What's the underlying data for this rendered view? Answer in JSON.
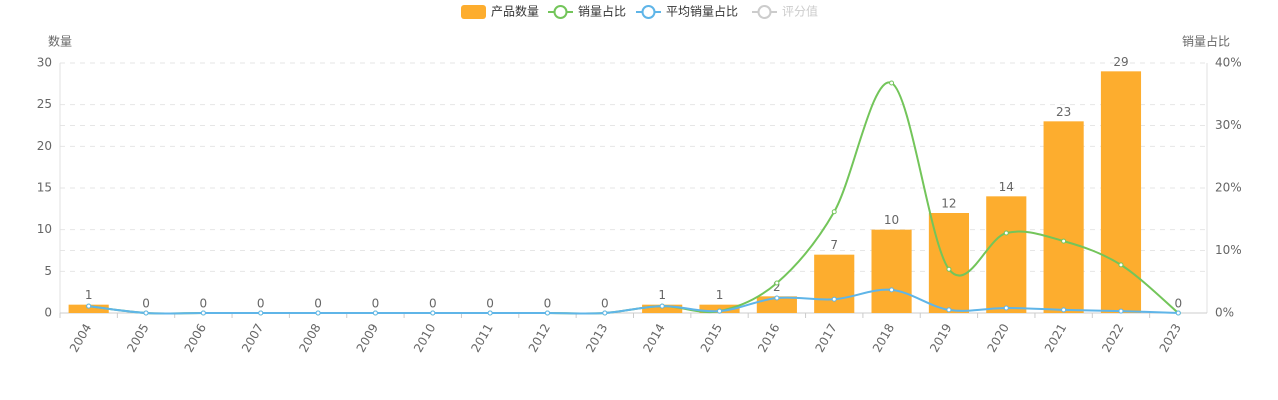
{
  "chart_data": {
    "type": "bar-line",
    "y_label": "数量",
    "y2_label": "销量占比",
    "categories": [
      "2004",
      "2005",
      "2006",
      "2007",
      "2008",
      "2009",
      "2010",
      "2011",
      "2012",
      "2013",
      "2014",
      "2015",
      "2016",
      "2017",
      "2018",
      "2019",
      "2020",
      "2021",
      "2022",
      "2023"
    ],
    "ylim": [
      0,
      30
    ],
    "yticks": [
      0,
      5,
      10,
      15,
      20,
      25,
      30
    ],
    "y2lim": [
      0,
      40
    ],
    "y2ticks": [
      {
        "value": 0,
        "label": "0%"
      },
      {
        "value": 10,
        "label": "10%"
      },
      {
        "value": 20,
        "label": "20%"
      },
      {
        "value": 30,
        "label": "30%"
      },
      {
        "value": 40,
        "label": "40%"
      }
    ],
    "grid": true,
    "series": [
      {
        "name": "产品数量",
        "type": "bar",
        "color": "#fdad2e",
        "values": [
          1,
          0,
          0,
          0,
          0,
          0,
          0,
          0,
          0,
          0,
          1,
          1,
          2,
          7,
          10,
          12,
          14,
          23,
          29,
          0
        ]
      },
      {
        "name": "销量占比",
        "type": "line",
        "axis": "y2",
        "color": "#73c55a",
        "values": [
          1.1,
          0,
          0,
          0,
          0,
          0,
          0,
          0,
          0,
          0,
          1.1,
          0.3,
          4.8,
          16.2,
          36.8,
          7.0,
          12.8,
          11.5,
          7.7,
          0
        ]
      },
      {
        "name": "平均销量占比",
        "type": "line",
        "axis": "y2",
        "color": "#5fb5e8",
        "values": [
          1.1,
          0,
          0,
          0,
          0,
          0,
          0,
          0,
          0,
          0,
          1.1,
          0.3,
          2.4,
          2.2,
          3.7,
          0.5,
          0.8,
          0.5,
          0.3,
          0
        ]
      },
      {
        "name": "评分值",
        "type": "line",
        "axis": "y2",
        "hidden": true,
        "color": "#cccccc",
        "values": [
          null,
          null,
          null,
          null,
          null,
          null,
          null,
          null,
          null,
          null,
          null,
          null,
          null,
          null,
          null,
          null,
          null,
          null,
          null,
          null
        ]
      }
    ]
  }
}
